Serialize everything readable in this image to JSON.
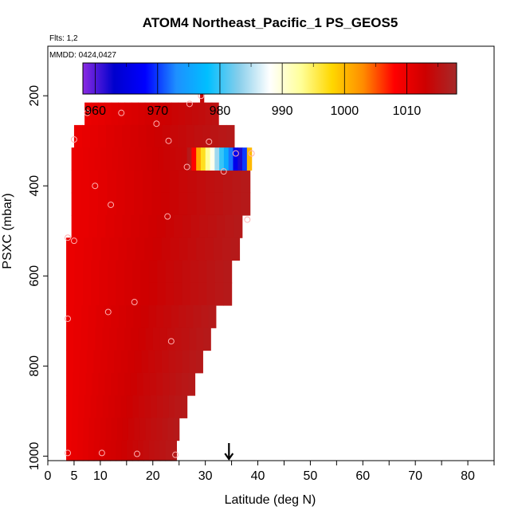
{
  "chart_data": {
    "type": "heatmap",
    "title": "ATOM4 Northeast_Pacific_1 PS_GEOS5",
    "flights_note": "Flts: 1,2",
    "dates_note": "MMDD: 0424,0427",
    "xlabel": "Latitude (deg N)",
    "ylabel": "PSXC (mbar)",
    "xlim": [
      0,
      85
    ],
    "ylim": [
      1010,
      90
    ],
    "x_ticks": [
      0,
      5,
      10,
      20,
      30,
      40,
      50,
      60,
      70,
      80
    ],
    "y_ticks": [
      200,
      400,
      600,
      800,
      1000
    ],
    "x_minor_ticks": [
      15,
      25,
      35,
      45,
      55,
      65,
      75,
      85
    ],
    "grid": false,
    "colorbar": {
      "min": 958,
      "max": 1018,
      "ticks": [
        960,
        970,
        980,
        990,
        1000,
        1010
      ],
      "colors": [
        "#8a2be2",
        "#0000cd",
        "#0000ff",
        "#1e90ff",
        "#00bfff",
        "#87ceeb",
        "#ffffff",
        "#ffff99",
        "#ffd700",
        "#ff8c00",
        "#ff0000",
        "#cd0000",
        "#a52a2a"
      ]
    },
    "cells": [
      {
        "p0": 165,
        "p1": 215,
        "lat0": 29.0,
        "lat1": 29.7,
        "value": 1014
      },
      {
        "p0": 215,
        "p1": 265,
        "lat0": 7.0,
        "lat1": 32.5,
        "value_start": 1010,
        "value_end": 1015
      },
      {
        "p0": 265,
        "p1": 315,
        "lat0": 5.0,
        "lat1": 35.5,
        "value_start": 1010,
        "value_end": 1016
      },
      {
        "p0": 315,
        "p1": 365,
        "lat0": 4.5,
        "lat1": 26.5,
        "value_start": 1010,
        "value_end": 1014
      },
      {
        "p0": 365,
        "p1": 415,
        "lat0": 4.5,
        "lat1": 38.5,
        "value_start": 1010,
        "value_end": 1016
      },
      {
        "p0": 415,
        "p1": 465,
        "lat0": 4.5,
        "lat1": 38.5,
        "value_start": 1010,
        "value_end": 1016
      },
      {
        "p0": 465,
        "p1": 515,
        "lat0": 4.5,
        "lat1": 37.0,
        "value_start": 1010,
        "value_end": 1016
      },
      {
        "p0": 515,
        "p1": 565,
        "lat0": 3.5,
        "lat1": 36.5,
        "value_start": 1010,
        "value_end": 1016
      },
      {
        "p0": 565,
        "p1": 615,
        "lat0": 3.5,
        "lat1": 35.0,
        "value_start": 1010,
        "value_end": 1016
      },
      {
        "p0": 615,
        "p1": 665,
        "lat0": 3.5,
        "lat1": 35.0,
        "value_start": 1010,
        "value_end": 1016
      },
      {
        "p0": 665,
        "p1": 715,
        "lat0": 3.5,
        "lat1": 32.0,
        "value_start": 1010,
        "value_end": 1016
      },
      {
        "p0": 715,
        "p1": 765,
        "lat0": 3.5,
        "lat1": 31.0,
        "value_start": 1010,
        "value_end": 1016
      },
      {
        "p0": 765,
        "p1": 815,
        "lat0": 3.5,
        "lat1": 29.5,
        "value_start": 1010,
        "value_end": 1016
      },
      {
        "p0": 815,
        "p1": 865,
        "lat0": 3.5,
        "lat1": 28.0,
        "value_start": 1010,
        "value_end": 1016
      },
      {
        "p0": 865,
        "p1": 915,
        "lat0": 3.5,
        "lat1": 26.5,
        "value_start": 1010,
        "value_end": 1016
      },
      {
        "p0": 915,
        "p1": 965,
        "lat0": 3.5,
        "lat1": 25.0,
        "value_start": 1010,
        "value_end": 1016
      },
      {
        "p0": 965,
        "p1": 1010,
        "lat0": 3.5,
        "lat1": 24.5,
        "value_start": 1010,
        "value_end": 1016
      },
      {
        "p0": 315,
        "p1": 365,
        "lat0": 26.5,
        "lat1": 38.8,
        "values": [
          1016,
          1008,
          1001,
          997,
          993,
          989,
          984,
          980,
          976,
          972,
          966,
          962,
          970,
          1000
        ]
      }
    ],
    "points": [
      [
        29.2,
        200
      ],
      [
        27.0,
        218
      ],
      [
        7.5,
        238
      ],
      [
        14.0,
        238
      ],
      [
        20.7,
        262
      ],
      [
        5.0,
        297
      ],
      [
        23.0,
        300
      ],
      [
        30.7,
        302
      ],
      [
        35.8,
        328
      ],
      [
        38.8,
        328
      ],
      [
        26.5,
        358
      ],
      [
        33.5,
        368
      ],
      [
        9.0,
        400
      ],
      [
        12.0,
        442
      ],
      [
        22.8,
        468
      ],
      [
        38.0,
        475
      ],
      [
        3.8,
        515
      ],
      [
        5.0,
        522
      ],
      [
        11.5,
        680
      ],
      [
        16.5,
        658
      ],
      [
        3.8,
        695
      ],
      [
        23.5,
        745
      ],
      [
        3.8,
        993
      ],
      [
        10.3,
        993
      ],
      [
        17.0,
        995
      ],
      [
        24.3,
        997
      ]
    ],
    "marker_arrow_lat": 34.5
  }
}
